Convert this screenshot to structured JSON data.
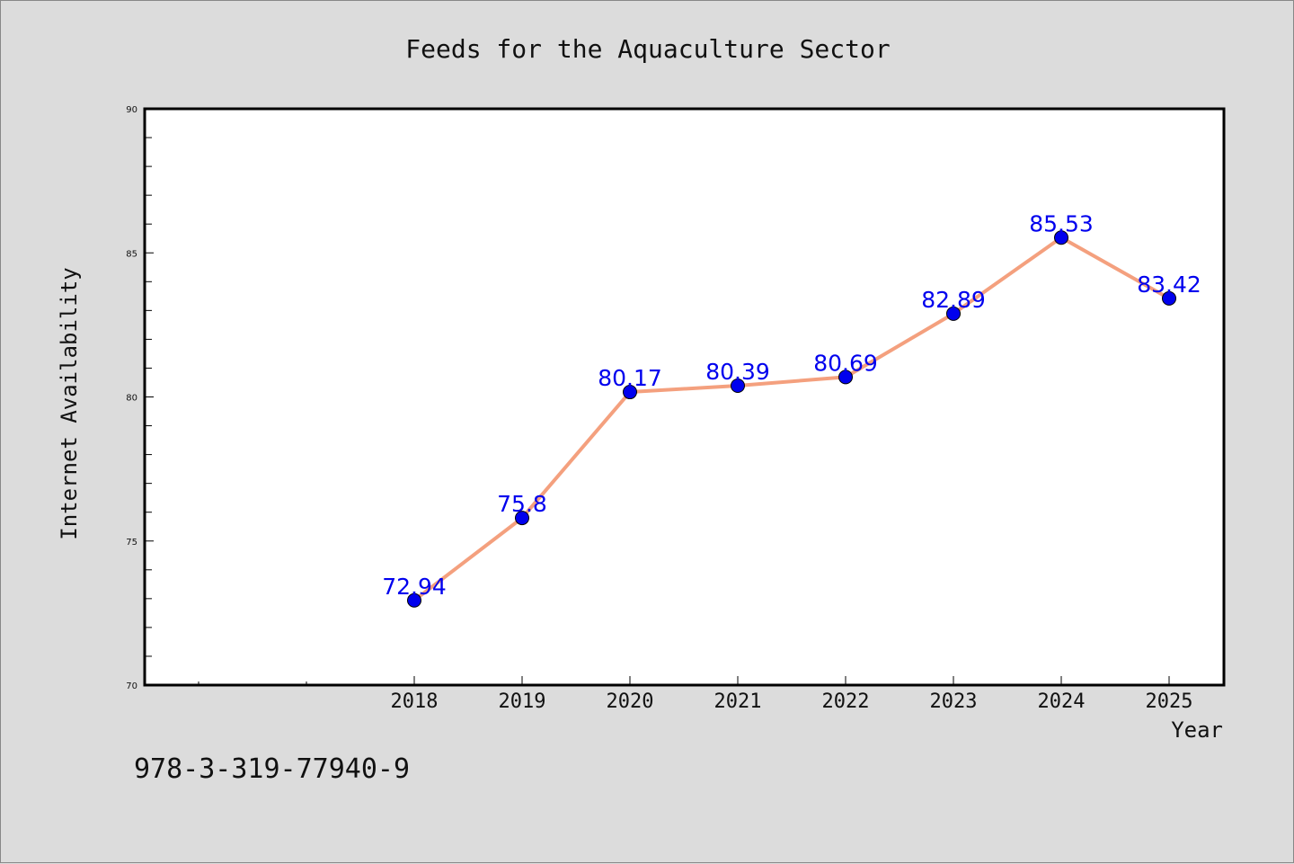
{
  "footer": {
    "text": "978-3-319-77940-9"
  },
  "colors": {
    "line": "#f4a07e",
    "marker": "#0000ee",
    "label": "#0000ee",
    "plot_bg": "#ffffff",
    "page_bg": "#dcdcdc"
  },
  "chart_data": {
    "type": "line",
    "title": "Feeds for the Aquaculture Sector",
    "xlabel": "Year",
    "ylabel": "Internet Availability",
    "x": [
      "2018",
      "2019",
      "2020",
      "2021",
      "2022",
      "2023",
      "2024",
      "2025"
    ],
    "series": [
      {
        "values": [
          72.94,
          75.8,
          80.17,
          80.39,
          80.69,
          82.89,
          85.53,
          83.42
        ]
      }
    ],
    "data_labels": [
      "72.94",
      "75.8",
      "80.17",
      "80.39",
      "80.69",
      "82.89",
      "85.53",
      "83.42"
    ],
    "ylim": [
      70,
      90
    ],
    "yticks": [
      "70",
      "75",
      "80",
      "85",
      "90"
    ],
    "grid": false,
    "legend": "none"
  }
}
